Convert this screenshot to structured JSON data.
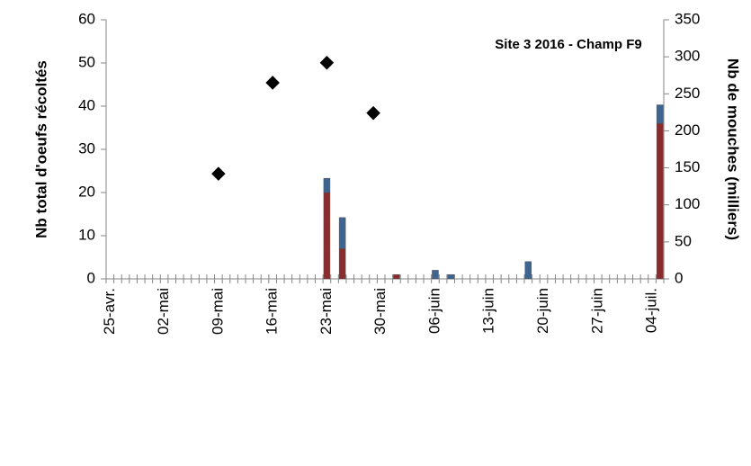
{
  "chart_data": {
    "type": "bar",
    "annotation": "Site 3 2016 - Champ F9",
    "y_label": "Nb total d'oeufs récoltés",
    "y2_label": "Nb de mouches (milliers)",
    "categories": [
      "25-avr.",
      null,
      null,
      null,
      null,
      null,
      null,
      "02-mai",
      null,
      null,
      null,
      null,
      null,
      null,
      "09-mai",
      null,
      null,
      null,
      null,
      null,
      null,
      "16-mai",
      null,
      null,
      null,
      null,
      null,
      null,
      "23-mai",
      null,
      null,
      null,
      null,
      null,
      null,
      "30-mai",
      null,
      null,
      null,
      null,
      null,
      null,
      "06-juin",
      null,
      null,
      null,
      null,
      null,
      null,
      "13-juin",
      null,
      null,
      null,
      null,
      null,
      null,
      "20-juin",
      null,
      null,
      null,
      null,
      null,
      null,
      "27-juin",
      null,
      null,
      null,
      null,
      null,
      null,
      "04-juil.",
      null
    ],
    "series": [
      {
        "type": "bar",
        "color": "#8b2b2b",
        "values": [
          null,
          null,
          null,
          null,
          null,
          null,
          null,
          null,
          null,
          null,
          null,
          null,
          null,
          null,
          null,
          null,
          null,
          null,
          null,
          null,
          null,
          null,
          null,
          null,
          null,
          null,
          null,
          null,
          20,
          null,
          7,
          null,
          null,
          null,
          null,
          null,
          null,
          1,
          null,
          null,
          null,
          null,
          null,
          null,
          null,
          null,
          null,
          null,
          null,
          null,
          null,
          null,
          null,
          null,
          null,
          null,
          null,
          null,
          null,
          null,
          null,
          null,
          null,
          null,
          null,
          null,
          null,
          null,
          null,
          null,
          null,
          36
        ]
      },
      {
        "type": "bar",
        "color": "#3d6590",
        "values": [
          null,
          null,
          null,
          null,
          null,
          null,
          null,
          null,
          null,
          null,
          null,
          null,
          null,
          null,
          null,
          null,
          null,
          null,
          null,
          null,
          null,
          null,
          null,
          null,
          null,
          null,
          null,
          null,
          3.3,
          null,
          7.2,
          null,
          null,
          null,
          null,
          null,
          null,
          null,
          null,
          null,
          null,
          null,
          2,
          null,
          1,
          null,
          null,
          null,
          null,
          null,
          null,
          null,
          null,
          null,
          4,
          null,
          null,
          null,
          null,
          null,
          null,
          null,
          null,
          null,
          null,
          null,
          null,
          null,
          null,
          null,
          null,
          4.3
        ]
      },
      {
        "type": "scatter",
        "axis": "y2",
        "color": "#000000",
        "values": [
          null,
          null,
          null,
          null,
          null,
          null,
          null,
          null,
          null,
          null,
          null,
          null,
          null,
          null,
          142,
          null,
          null,
          null,
          null,
          null,
          null,
          265,
          null,
          null,
          null,
          null,
          null,
          null,
          292,
          null,
          null,
          null,
          null,
          null,
          224,
          null,
          null,
          null,
          null,
          null,
          null,
          null,
          null,
          null,
          null,
          null,
          null,
          null,
          null,
          null,
          null,
          null,
          null,
          null,
          null,
          null,
          null,
          null,
          null,
          null,
          null,
          null,
          null,
          null,
          null,
          null,
          null,
          null,
          null,
          null,
          null,
          null
        ]
      }
    ],
    "ylim": [
      0,
      60
    ],
    "yticks": [
      0,
      10,
      20,
      30,
      40,
      50,
      60
    ],
    "y2lim": [
      0,
      350
    ],
    "y2ticks": [
      0,
      50,
      100,
      150,
      200,
      250,
      300,
      350
    ]
  }
}
